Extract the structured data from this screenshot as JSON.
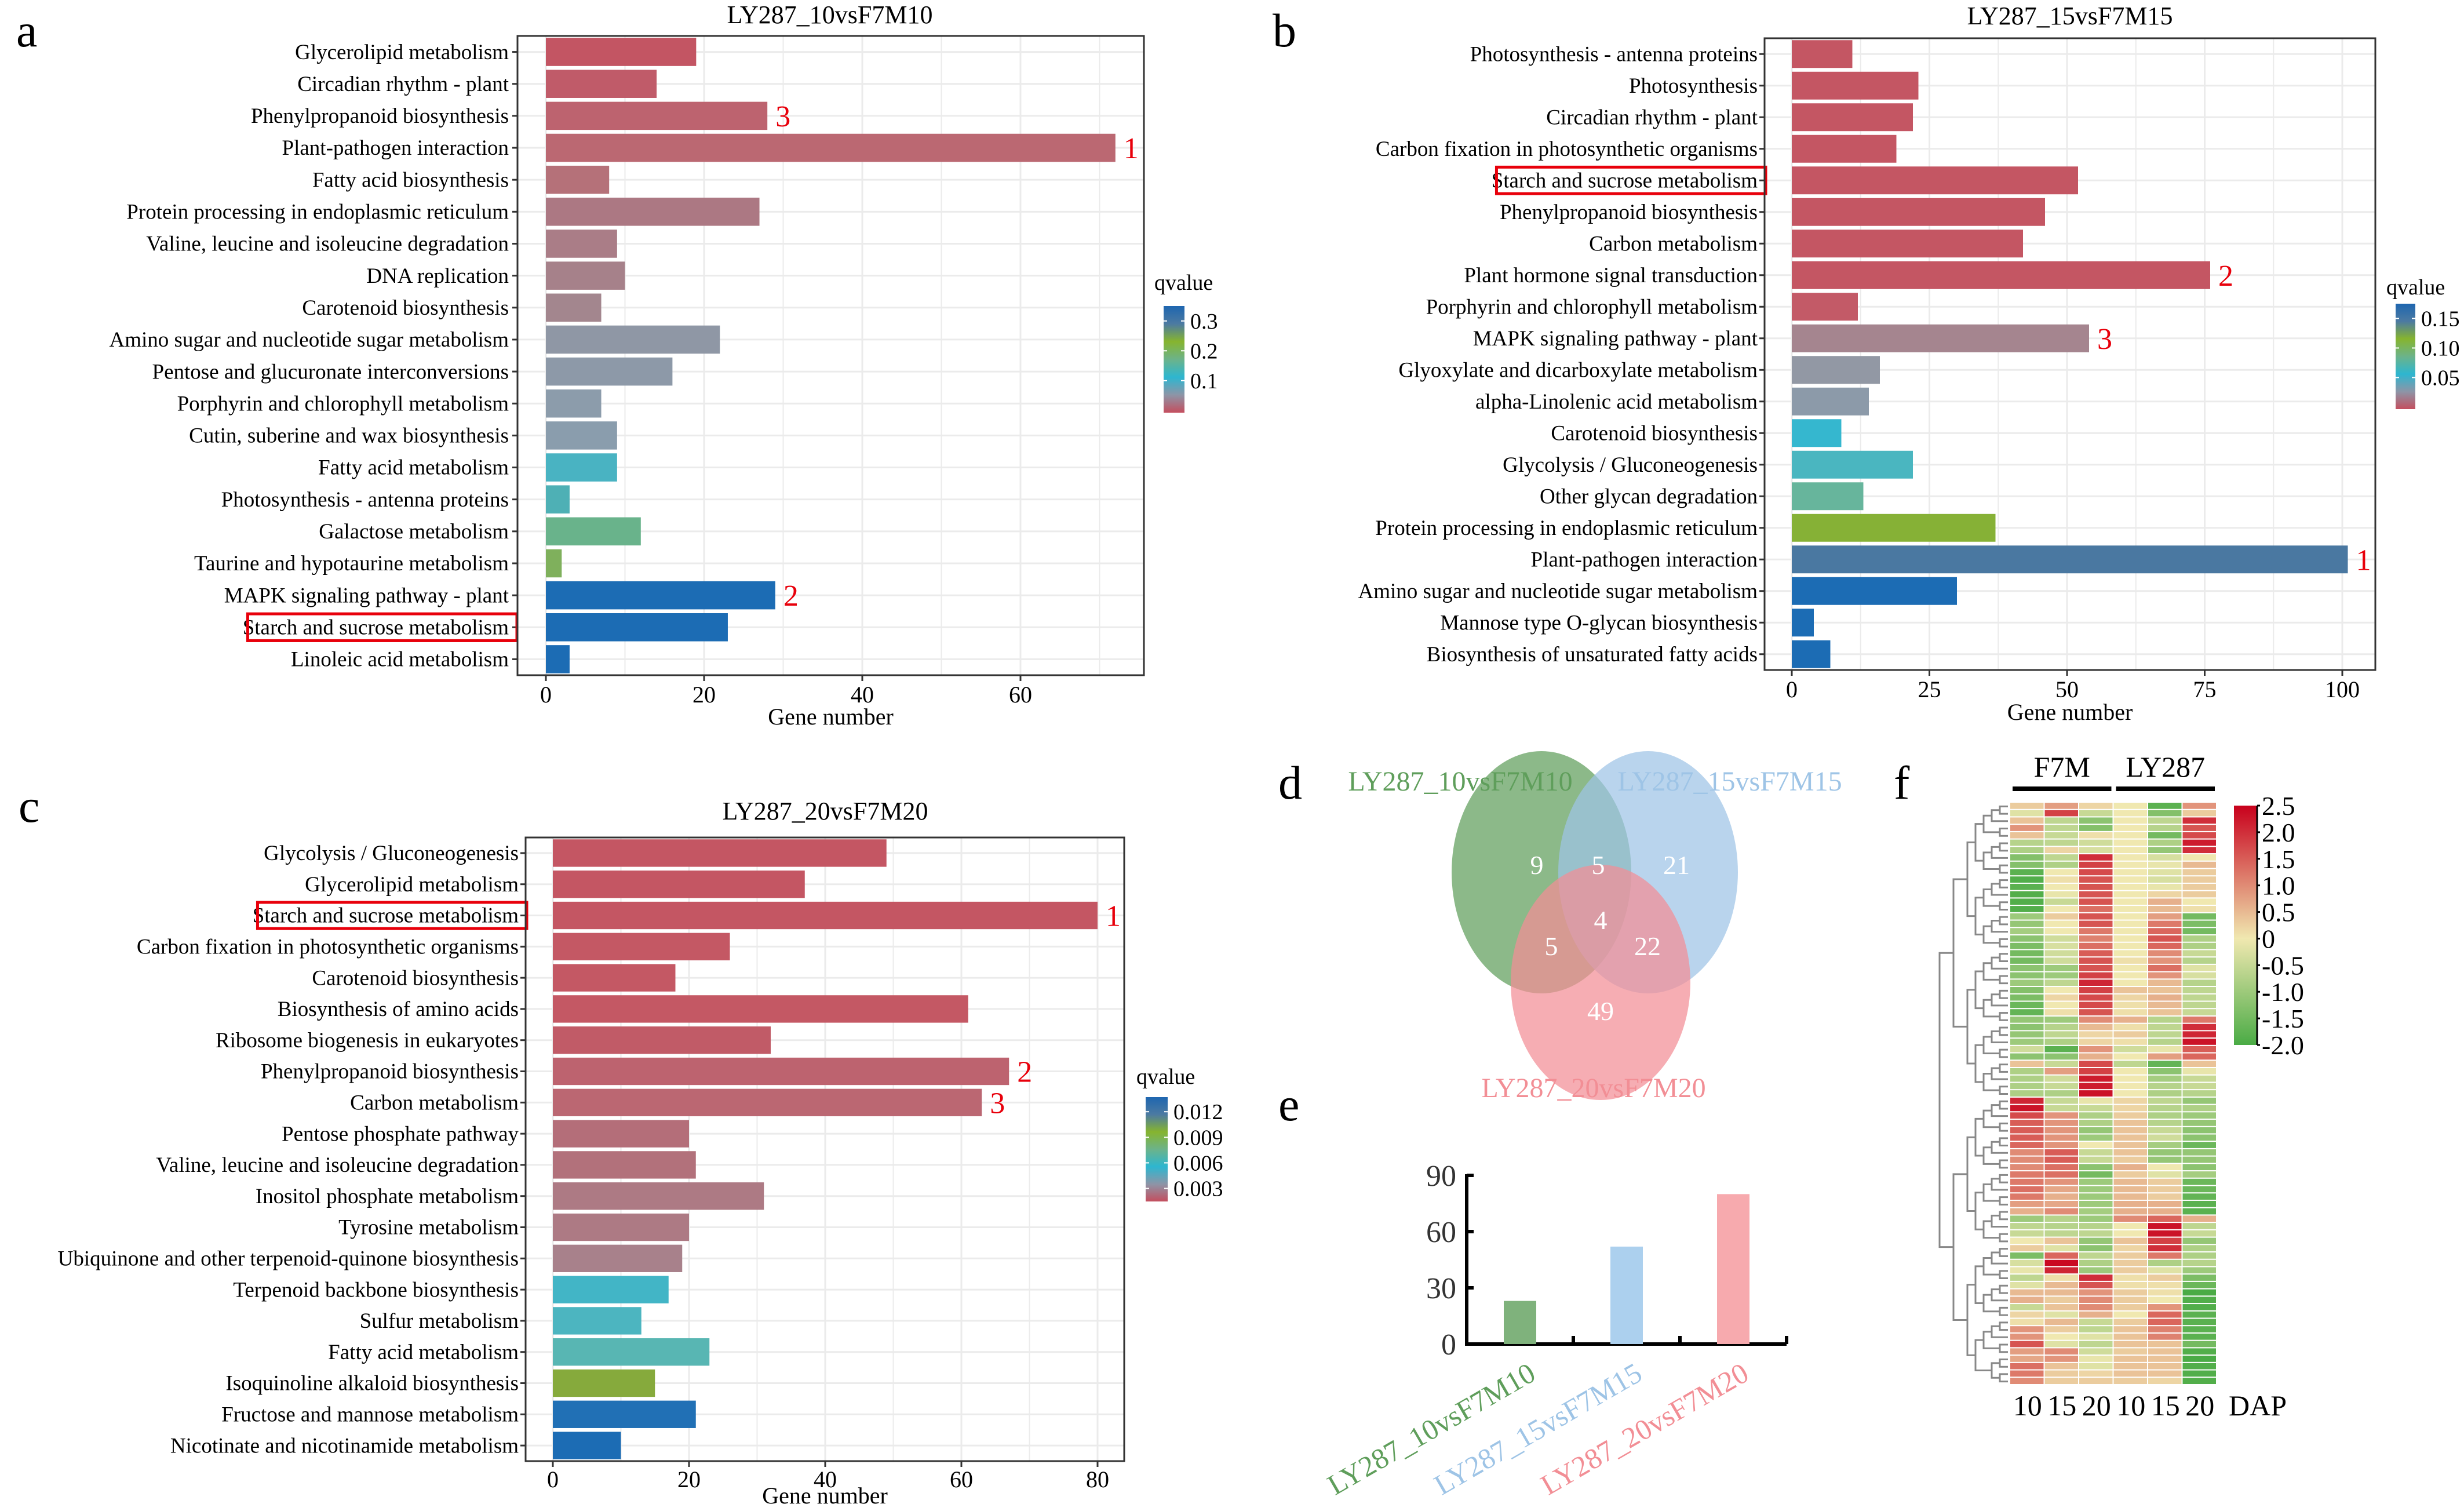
{
  "panels": {
    "a": {
      "letter": "a"
    },
    "b": {
      "letter": "b"
    },
    "c": {
      "letter": "c"
    },
    "d": {
      "letter": "d"
    },
    "e": {
      "letter": "e"
    },
    "f": {
      "letter": "f"
    }
  },
  "chart_data": [
    {
      "id": "a",
      "type": "bar",
      "orientation": "horizontal",
      "title": "LY287_10vsF7M10",
      "xlabel": "Gene number",
      "ylabel": "",
      "xlim": [
        0,
        75
      ],
      "xticks": [
        0,
        20,
        40,
        60
      ],
      "grid": true,
      "categories": [
        "Glycerolipid metabolism",
        "Circadian rhythm - plant",
        "Phenylpropanoid biosynthesis",
        "Plant-pathogen interaction",
        "Fatty acid biosynthesis",
        "Protein processing in endoplasmic reticulum",
        "Valine, leucine and isoleucine degradation",
        "DNA replication",
        "Carotenoid biosynthesis",
        "Amino sugar and nucleotide sugar metabolism",
        "Pentose and glucuronate interconversions",
        "Porphyrin and chlorophyll metabolism",
        "Cutin, suberine and wax biosynthesis",
        "Fatty acid metabolism",
        "Photosynthesis - antenna proteins",
        "Galactose metabolism",
        "Taurine and hypotaurine metabolism",
        "MAPK signaling pathway - plant",
        "Starch and sucrose metabolism",
        "Linoleic acid metabolism"
      ],
      "values": [
        19,
        14,
        28,
        72,
        8,
        27,
        9,
        10,
        7,
        22,
        16,
        7,
        9,
        9,
        3,
        12,
        2,
        29,
        23,
        3
      ],
      "bar_colors": [
        "#c35563",
        "#c05b69",
        "#bd636f",
        "#bb6872",
        "#b57179",
        "#ac7883",
        "#aa7d87",
        "#a6818a",
        "#a3868e",
        "#8f97a5",
        "#8d99a8",
        "#8c9cab",
        "#8a9dad",
        "#49b3c2",
        "#4eb0b5",
        "#69b38b",
        "#7fb05c",
        "#1c6cb4",
        "#1c6cb4",
        "#1c6cb4"
      ],
      "rank_annotations": [
        {
          "category": "Plant-pathogen interaction",
          "rank": "1"
        },
        {
          "category": "MAPK signaling pathway - plant",
          "rank": "2"
        },
        {
          "category": "Phenylpropanoid biosynthesis",
          "rank": "3"
        }
      ],
      "highlighted_category": "Starch and sucrose metabolism",
      "legend": {
        "title": "qvalue",
        "labels": [
          "0.3",
          "0.2",
          "0.1"
        ],
        "placement": "right"
      }
    },
    {
      "id": "b",
      "type": "bar",
      "orientation": "horizontal",
      "title": "LY287_15vsF7M15",
      "xlabel": "Gene number",
      "ylabel": "",
      "xlim": [
        0,
        110
      ],
      "xticks": [
        0,
        25,
        50,
        75,
        100
      ],
      "grid": true,
      "categories": [
        "Photosynthesis - antenna proteins",
        "Photosynthesis",
        "Circadian rhythm - plant",
        "Carbon fixation in photosynthetic organisms",
        "Starch and sucrose metabolism",
        "Phenylpropanoid biosynthesis",
        "Carbon metabolism",
        "Plant hormone signal transduction",
        "Porphyrin and chlorophyll metabolism",
        "MAPK signaling pathway - plant",
        "Glyoxylate and dicarboxylate metabolism",
        "alpha-Linolenic acid metabolism",
        "Carotenoid biosynthesis",
        "Glycolysis / Gluconeogenesis",
        "Other glycan degradation",
        "Protein processing in endoplasmic reticulum",
        "Plant-pathogen interaction",
        "Amino sugar and nucleotide sugar metabolism",
        "Mannose type O-glycan biosynthesis",
        "Biosynthesis of unsaturated fatty acids"
      ],
      "values": [
        11,
        23,
        22,
        19,
        52,
        46,
        42,
        76,
        12,
        54,
        16,
        14,
        9,
        22,
        13,
        37,
        101,
        30,
        4,
        7
      ],
      "bar_colors": [
        "#c45663",
        "#c45663",
        "#c45663",
        "#c45663",
        "#c45663",
        "#c45663",
        "#c45663",
        "#c45663",
        "#c35a67",
        "#a5858f",
        "#9298a4",
        "#8c9aa9",
        "#35b7cf",
        "#4ab6c0",
        "#67b59c",
        "#86b136",
        "#4a78a1",
        "#1c6cb4",
        "#1c6cb4",
        "#1c6cb4"
      ],
      "rank_annotations": [
        {
          "category": "Plant-pathogen interaction",
          "rank": "1"
        },
        {
          "category": "Plant hormone signal transduction",
          "rank": "2"
        },
        {
          "category": "MAPK signaling pathway - plant",
          "rank": "3"
        }
      ],
      "highlighted_category": "Starch and sucrose metabolism",
      "legend": {
        "title": "qvalue",
        "labels": [
          "0.15",
          "0.10",
          "0.05"
        ],
        "placement": "right"
      }
    },
    {
      "id": "c",
      "type": "bar",
      "orientation": "horizontal",
      "title": "LY287_20vsF7M20",
      "xlabel": "Gene number",
      "ylabel": "",
      "xlim": [
        0,
        84
      ],
      "xticks": [
        0,
        20,
        40,
        60,
        80
      ],
      "grid": true,
      "categories": [
        "Glycolysis / Gluconeogenesis",
        "Glycerolipid metabolism",
        "Starch and sucrose metabolism",
        "Carbon fixation in photosynthetic organisms",
        "Carotenoid biosynthesis",
        "Biosynthesis of amino acids",
        "Ribosome biogenesis in eukaryotes",
        "Phenylpropanoid biosynthesis",
        "Carbon metabolism",
        "Pentose phosphate pathway",
        "Valine, leucine and isoleucine degradation",
        "Inositol phosphate metabolism",
        "Tyrosine metabolism",
        "Ubiquinone and other terpenoid-quinone biosynthesis",
        "Terpenoid backbone biosynthesis",
        "Sulfur metabolism",
        "Fatty acid metabolism",
        "Isoquinoline alkaloid biosynthesis",
        "Fructose and mannose metabolism",
        "Nicotinate and nicotinamide metabolism"
      ],
      "values": [
        49,
        37,
        80,
        26,
        18,
        61,
        32,
        67,
        63,
        20,
        21,
        31,
        20,
        19,
        17,
        13,
        23,
        15,
        21,
        10
      ],
      "bar_colors": [
        "#c45663",
        "#c45663",
        "#c45663",
        "#c45864",
        "#c45864",
        "#c45864",
        "#c15b67",
        "#bd636f",
        "#bb6772",
        "#b46e79",
        "#b2717b",
        "#ad7a84",
        "#ad7a84",
        "#a8818b",
        "#42b5c6",
        "#4cb5c0",
        "#58b6b3",
        "#86aa3c",
        "#2170b5",
        "#1c6cb4"
      ],
      "rank_annotations": [
        {
          "category": "Starch and sucrose metabolism",
          "rank": "1"
        },
        {
          "category": "Phenylpropanoid biosynthesis",
          "rank": "2"
        },
        {
          "category": "Carbon metabolism",
          "rank": "3"
        }
      ],
      "highlighted_category": "Starch and sucrose metabolism",
      "legend": {
        "title": "qvalue",
        "labels": [
          "0.012",
          "0.009",
          "0.006",
          "0.003"
        ],
        "placement": "right"
      }
    },
    {
      "id": "d",
      "type": "venn",
      "sets": [
        {
          "name": "LY287_10vsF7M10",
          "color": "#5f9e5b"
        },
        {
          "name": "LY287_15vsF7M15",
          "color": "#9ec4e6"
        },
        {
          "name": "LY287_20vsF7M20",
          "color": "#f28e95"
        }
      ],
      "regions": [
        {
          "sets": [
            "LY287_10vsF7M10"
          ],
          "value": 9
        },
        {
          "sets": [
            "LY287_10vsF7M10",
            "LY287_15vsF7M15"
          ],
          "value": 5
        },
        {
          "sets": [
            "LY287_15vsF7M15"
          ],
          "value": 21
        },
        {
          "sets": [
            "LY287_10vsF7M10",
            "LY287_15vsF7M15",
            "LY287_20vsF7M20"
          ],
          "value": 4
        },
        {
          "sets": [
            "LY287_10vsF7M10",
            "LY287_20vsF7M20"
          ],
          "value": 5
        },
        {
          "sets": [
            "LY287_15vsF7M15",
            "LY287_20vsF7M20"
          ],
          "value": 22
        },
        {
          "sets": [
            "LY287_20vsF7M20"
          ],
          "value": 49
        }
      ]
    },
    {
      "id": "e",
      "type": "bar",
      "orientation": "vertical",
      "title": "",
      "xlabel": "",
      "ylabel": "",
      "ylim": [
        0,
        90
      ],
      "yticks": [
        0,
        30,
        60,
        90
      ],
      "grid": false,
      "categories": [
        "LY287_10vsF7M10",
        "LY287_15vsF7M15",
        "LY287_20vsF7M20"
      ],
      "values": [
        23,
        52,
        80
      ],
      "bar_colors": [
        "#7fb27c",
        "#acd0ee",
        "#f7aaae"
      ],
      "label_colors": [
        "#5f9e5b",
        "#9ec4e6",
        "#f28e95"
      ]
    },
    {
      "id": "f",
      "type": "heatmap",
      "column_groups": [
        {
          "name": "F7M",
          "columns": 3
        },
        {
          "name": "LY287",
          "columns": 3
        }
      ],
      "x": [
        "10",
        "15",
        "20",
        "10",
        "15",
        "20"
      ],
      "xlabel": "DAP",
      "colorbar": {
        "min": -2.0,
        "max": 2.5,
        "ticks": [
          "2.5",
          "2.0",
          "1.5",
          "1.0",
          "0.5",
          "0",
          "-0.5",
          "-1.0",
          "-1.5",
          "-2.0"
        ],
        "low_color": "#4aab45",
        "mid_color": "#f0e8b0",
        "high_color": "#c8001c"
      },
      "dendrogram": "rows",
      "rows": [
        [
          0.3,
          0.8,
          0.2,
          0,
          -1.8,
          0.9
        ],
        [
          -0.2,
          1.8,
          -0.5,
          0,
          -1.3,
          0.3
        ],
        [
          0.4,
          -0.6,
          -1.2,
          0,
          -0.6,
          2.0
        ],
        [
          0.9,
          -0.6,
          -1.3,
          0,
          -0.7,
          1.6
        ],
        [
          0.4,
          -0.5,
          0.1,
          0,
          -1.5,
          1.7
        ],
        [
          -0.7,
          -0.6,
          -0.4,
          0,
          -0.8,
          2.2
        ],
        [
          -0.8,
          0.2,
          -0.3,
          0,
          -1.1,
          2.0
        ],
        [
          -1.3,
          -0.6,
          2.0,
          0,
          -0.3,
          0
        ],
        [
          -1.3,
          -0.8,
          1.8,
          0,
          -0.1,
          0.5
        ],
        [
          -1.8,
          0,
          1.7,
          0,
          -0.2,
          0.3
        ],
        [
          -1.9,
          0.1,
          1.6,
          0,
          -0.3,
          0.3
        ],
        [
          -1.8,
          0,
          1.6,
          0,
          -0.1,
          0.3
        ],
        [
          -1.9,
          -0.1,
          1.6,
          0,
          0.2,
          0.3
        ],
        [
          -1.9,
          -0.5,
          1.6,
          0,
          0.6,
          0
        ],
        [
          -1.9,
          0,
          1.3,
          0,
          0.5,
          0.1
        ],
        [
          -1.0,
          0.3,
          1.6,
          0,
          0.8,
          -1.5
        ],
        [
          -1.1,
          0,
          1.6,
          0,
          1.2,
          -1.4
        ],
        [
          -0.9,
          0,
          1.2,
          0,
          1.4,
          -1.5
        ],
        [
          -1.2,
          -0.4,
          1.1,
          0,
          1.6,
          -0.8
        ],
        [
          -1.4,
          -0.3,
          1.3,
          0,
          1.4,
          -0.8
        ],
        [
          -1.5,
          -0.4,
          1.5,
          0,
          1.0,
          -0.5
        ],
        [
          -1.5,
          -0.4,
          1.6,
          0.1,
          0.9,
          -0.7
        ],
        [
          -1.2,
          -1.0,
          1.6,
          0,
          1.3,
          -0.2
        ],
        [
          -1.2,
          -1.0,
          1.8,
          0,
          0.9,
          -0.3
        ],
        [
          -1.0,
          -0.6,
          2.1,
          0,
          0.5,
          -0.7
        ],
        [
          -1.3,
          0,
          1.8,
          0.4,
          0.4,
          -0.6
        ],
        [
          -1.4,
          0.2,
          1.7,
          0.2,
          0.6,
          -0.6
        ],
        [
          -1.6,
          0,
          1.7,
          0.1,
          0.5,
          -0.6
        ],
        [
          -1.7,
          0.1,
          1.6,
          0.1,
          0.4,
          -0.5
        ],
        [
          -1.1,
          -1.0,
          1.0,
          0.6,
          -0.7,
          1.2
        ],
        [
          -1.2,
          -0.7,
          0.5,
          0.1,
          -0.6,
          2.0
        ],
        [
          -1.1,
          -0.6,
          0.2,
          0.3,
          -0.6,
          2.1
        ],
        [
          -1.0,
          -0.8,
          0.2,
          0.1,
          -0.7,
          2.3
        ],
        [
          -0.4,
          -1.8,
          0.9,
          -0.4,
          -0.1,
          1.5
        ],
        [
          -1.2,
          -1.2,
          0.6,
          0,
          0.8,
          1.4
        ],
        [
          0.4,
          -0.5,
          1.7,
          -0.6,
          -1.7,
          0.4
        ],
        [
          -0.8,
          0.8,
          1.8,
          0,
          -1.2,
          -0.1
        ],
        [
          -0.8,
          -0.4,
          2.2,
          0,
          -0.9,
          -0.5
        ],
        [
          -0.8,
          -0.5,
          2.2,
          0,
          -0.7,
          -0.5
        ],
        [
          -0.8,
          -0.8,
          2.3,
          0,
          -0.8,
          -0.7
        ],
        [
          2.1,
          -0.5,
          -0.1,
          0.2,
          -0.6,
          -1.1
        ],
        [
          2.3,
          -0.5,
          -0.5,
          0.2,
          -0.7,
          -0.8
        ],
        [
          1.7,
          0.9,
          -0.8,
          0.3,
          -0.8,
          -1.0
        ],
        [
          1.5,
          0.9,
          -0.8,
          0.4,
          -0.7,
          -1.1
        ],
        [
          1.5,
          0.9,
          -1.1,
          0.4,
          -0.5,
          -1.2
        ],
        [
          1.5,
          0.9,
          -1.0,
          0.4,
          -0.4,
          -1.2
        ],
        [
          1.4,
          0.9,
          0,
          0.4,
          -0.9,
          -1.6
        ],
        [
          1.0,
          1.5,
          -0.5,
          0.4,
          -1.1,
          -1.1
        ],
        [
          1.0,
          1.5,
          -0.5,
          0.3,
          -1.1,
          -1.1
        ],
        [
          1.0,
          1.3,
          -1.2,
          0.6,
          0,
          -1.2
        ],
        [
          1.2,
          1.3,
          -1.5,
          0.3,
          -0.2,
          -0.9
        ],
        [
          1.2,
          0.9,
          -1.0,
          0.5,
          0.3,
          -1.6
        ],
        [
          1.3,
          0.7,
          -1.0,
          0.5,
          0.3,
          -1.6
        ],
        [
          1.2,
          0.6,
          -1.0,
          0.5,
          0.3,
          -1.7
        ],
        [
          0.8,
          0.7,
          -1.0,
          0.6,
          0.6,
          -1.8
        ],
        [
          0.6,
          1.0,
          -0.9,
          0.6,
          0.6,
          -1.8
        ],
        [
          -1.0,
          -0.7,
          -1.0,
          1.0,
          1.4,
          0.6
        ],
        [
          -0.6,
          -0.7,
          -0.7,
          0,
          2.3,
          -0.6
        ],
        [
          -0.5,
          -0.6,
          -0.6,
          0,
          2.3,
          -0.5
        ],
        [
          0,
          0.4,
          -1.1,
          0.4,
          1.8,
          -1.1
        ],
        [
          0.3,
          -0.2,
          -1.2,
          0.2,
          2.0,
          -0.8
        ],
        [
          -1.4,
          1.4,
          -0.6,
          0.3,
          1.2,
          -0.8
        ],
        [
          -0.3,
          2.4,
          -0.8,
          0.3,
          -0.8,
          -0.7
        ],
        [
          -0.1,
          2.1,
          -1.0,
          0.3,
          -0.2,
          -1.0
        ],
        [
          -0.6,
          0.1,
          2.0,
          0.1,
          0.3,
          -1.4
        ],
        [
          -0.2,
          0.5,
          1.6,
          0.1,
          0.1,
          -1.6
        ],
        [
          0.5,
          0.5,
          0.9,
          0.3,
          0.1,
          -2.0
        ],
        [
          0.6,
          0.3,
          1.0,
          0.3,
          0,
          -1.9
        ],
        [
          -0.5,
          0.4,
          1.0,
          0.3,
          0.9,
          -1.9
        ],
        [
          0.2,
          -0.2,
          0.6,
          0,
          1.4,
          -1.8
        ],
        [
          0.1,
          0.5,
          -0.5,
          0.3,
          1.4,
          -1.8
        ],
        [
          0.9,
          0.3,
          -0.6,
          0.4,
          1.1,
          -1.8
        ],
        [
          0.9,
          0,
          -0.2,
          0.4,
          1.1,
          -1.8
        ],
        [
          1.6,
          -0.2,
          -0.6,
          0.4,
          0.4,
          -1.5
        ],
        [
          0.8,
          1.0,
          -0.4,
          0.3,
          0.4,
          -1.9
        ],
        [
          0.7,
          0.9,
          -0.1,
          0.4,
          0.4,
          -2.0
        ],
        [
          1.3,
          0.4,
          -0.2,
          0.4,
          0.4,
          -1.9
        ],
        [
          1.2,
          0.3,
          0.2,
          0.4,
          0.4,
          -1.9
        ],
        [
          1.0,
          0.3,
          0.3,
          0.3,
          0.2,
          -1.9
        ]
      ]
    }
  ],
  "style": {
    "rank_color": "#e8000b",
    "highlight_box_color": "#e8000b",
    "grid_color": "#ebebeb",
    "qvalue_gradient": [
      "#c44e5e",
      "#8d95a7",
      "#2db6d0",
      "#6cb38a",
      "#86b42e",
      "#4c7aa2",
      "#1e66b0"
    ]
  }
}
